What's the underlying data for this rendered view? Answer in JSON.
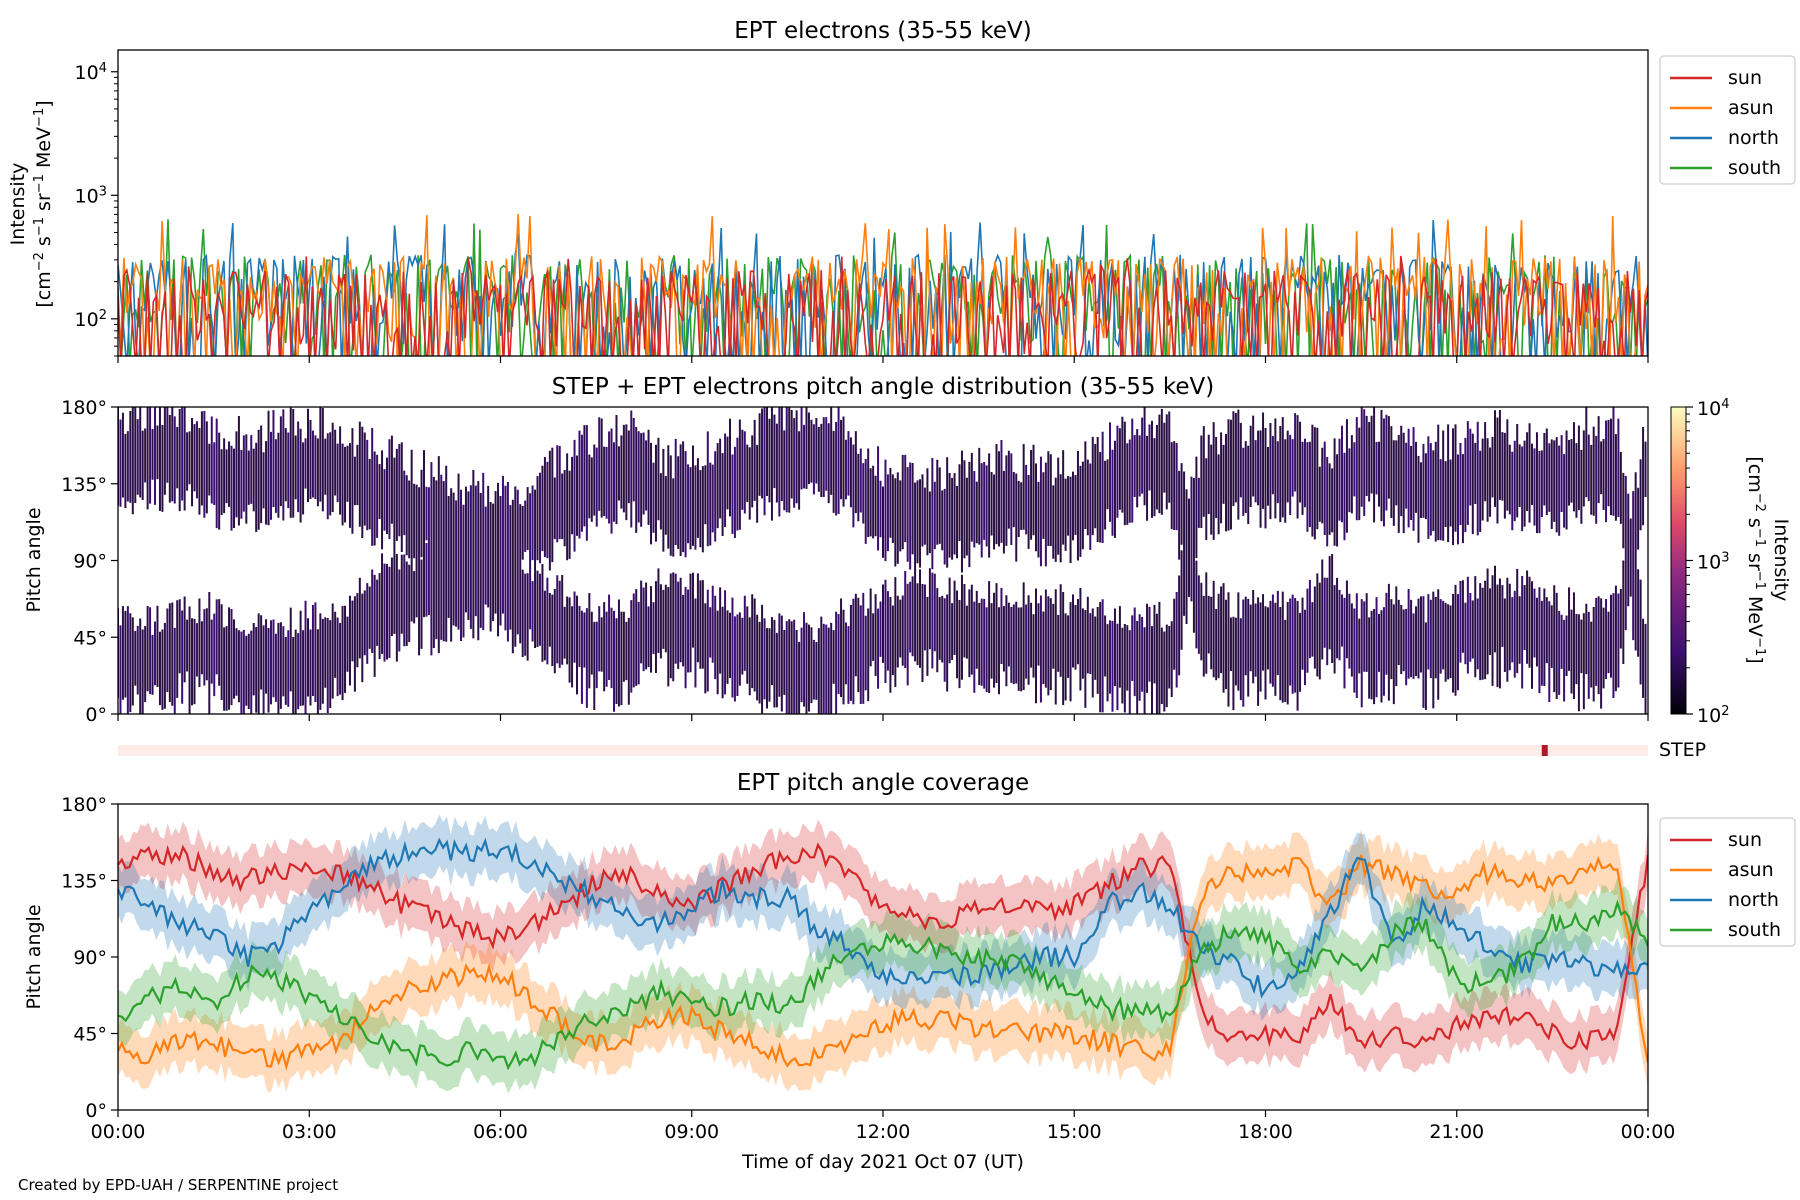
{
  "footer": {
    "credit": "Created by EPD-UAH / SERPENTINE project"
  },
  "colors": {
    "sun": "#d62728",
    "asun": "#ff7f0e",
    "north": "#1f77b4",
    "south": "#2ca02c",
    "step_bar": "#fdece8",
    "step_mark": "#b2182b",
    "pad_fill": "#2a0f45",
    "pad_low": "#000004"
  },
  "chart_data": [
    {
      "id": "ept-intensity",
      "type": "line",
      "title": "EPT electrons (35-55 keV)",
      "xlabel": "",
      "ylabel": "Intensity",
      "ylabel_units": "[cm$^{-2}$ s$^{-1}$ sr$^{-1}$ MeV$^{-1}$]",
      "ylabel_units_text": [
        "[cm",
        "−2",
        " s",
        "−1",
        " sr",
        "−1",
        " MeV",
        "−1",
        "]"
      ],
      "yscale": "log",
      "ylim": [
        50,
        15000
      ],
      "xlim": [
        "00:00",
        "24:00"
      ],
      "ytick_labels": [
        {
          "value": 100,
          "base": "10",
          "exp": "2"
        },
        {
          "value": 1000,
          "base": "10",
          "exp": "3"
        },
        {
          "value": 10000,
          "base": "10",
          "exp": "4"
        }
      ],
      "legend": {
        "placement": "outside-right-top",
        "entries": [
          "sun",
          "asun",
          "north",
          "south"
        ]
      },
      "series": [
        {
          "name": "sun",
          "typical_range": [
            50,
            250
          ],
          "peak_max": 330
        },
        {
          "name": "asun",
          "typical_range": [
            60,
            320
          ],
          "peak_max": 710
        },
        {
          "name": "north",
          "typical_range": [
            60,
            330
          ],
          "peak_max": 640
        },
        {
          "name": "south",
          "typical_range": [
            60,
            330
          ],
          "peak_max": 640
        }
      ]
    },
    {
      "id": "pitch-angle-distribution",
      "type": "heatmap",
      "title": "STEP + EPT electrons pitch angle distribution (35-55 keV)",
      "xlabel": "",
      "ylabel": "Pitch angle",
      "ylim": [
        0,
        180
      ],
      "yticks": [
        "0°",
        "45°",
        "90°",
        "135°",
        "180°"
      ],
      "colorbar": {
        "label": "Intensity",
        "units_text": [
          "[cm",
          "−2",
          " s",
          "−1",
          " sr",
          "−1",
          " MeV",
          "−1",
          "]"
        ],
        "scale": "log",
        "range": [
          100,
          10000
        ],
        "tick_labels": [
          {
            "value": 100,
            "base": "10",
            "exp": "2"
          },
          {
            "value": 1000,
            "base": "10",
            "exp": "3"
          },
          {
            "value": 10000,
            "base": "10",
            "exp": "4"
          }
        ]
      },
      "typical_intensity": 150
    },
    {
      "id": "step-coverage",
      "type": "bar",
      "label": "STEP",
      "mark_time": "22:20"
    },
    {
      "id": "ept-pitch-coverage",
      "type": "line",
      "title": "EPT pitch angle coverage",
      "xlabel": "Time of day 2021 Oct 07 (UT)",
      "ylabel": "Pitch angle",
      "ylim": [
        0,
        180
      ],
      "yticks": [
        "0°",
        "45°",
        "90°",
        "135°",
        "180°"
      ],
      "xticks": [
        "00:00",
        "03:00",
        "06:00",
        "09:00",
        "12:00",
        "15:00",
        "18:00",
        "21:00",
        "00:00"
      ],
      "xlim_hours": [
        0,
        24
      ],
      "legend": {
        "placement": "outside-right-top",
        "entries": [
          "sun",
          "asun",
          "north",
          "south"
        ]
      },
      "series": [
        {
          "name": "sun",
          "band_halfwidth": 15,
          "x": [
            0,
            0.5,
            1,
            1.5,
            2,
            2.5,
            3,
            3.5,
            4,
            4.5,
            5,
            5.5,
            6,
            6.5,
            7,
            7.5,
            8,
            8.5,
            9,
            9.5,
            10,
            10.5,
            11,
            11.5,
            12,
            12.5,
            13,
            13.5,
            14,
            14.5,
            15,
            15.5,
            16,
            16.5,
            17,
            17.5,
            18,
            18.5,
            19,
            19.5,
            20,
            20.5,
            21,
            21.5,
            22,
            22.5,
            23,
            23.5,
            24
          ],
          "y": [
            145,
            150,
            150,
            140,
            135,
            140,
            145,
            140,
            130,
            120,
            112,
            105,
            100,
            110,
            120,
            135,
            140,
            125,
            120,
            132,
            140,
            150,
            150,
            140,
            118,
            112,
            112,
            118,
            122,
            118,
            120,
            132,
            142,
            145,
            55,
            42,
            45,
            40,
            65,
            40,
            45,
            40,
            50,
            55,
            55,
            45,
            40,
            45,
            150
          ]
        },
        {
          "name": "asun",
          "band_halfwidth": 15,
          "x": [
            0,
            0.5,
            1,
            1.5,
            2,
            2.5,
            3,
            3.5,
            4,
            4.5,
            5,
            5.5,
            6,
            6.5,
            7,
            7.5,
            8,
            8.5,
            9,
            9.5,
            10,
            10.5,
            11,
            11.5,
            12,
            12.5,
            13,
            13.5,
            14,
            14.5,
            15,
            15.5,
            16,
            16.5,
            17,
            17.5,
            18,
            18.5,
            19,
            19.5,
            20,
            20.5,
            21,
            21.5,
            22,
            22.5,
            23,
            23.5,
            24
          ],
          "y": [
            35,
            32,
            40,
            40,
            30,
            30,
            35,
            40,
            60,
            70,
            75,
            80,
            80,
            65,
            50,
            40,
            42,
            55,
            55,
            45,
            40,
            30,
            30,
            40,
            50,
            55,
            52,
            48,
            48,
            45,
            45,
            40,
            35,
            35,
            130,
            140,
            140,
            145,
            120,
            145,
            140,
            130,
            130,
            140,
            135,
            135,
            140,
            145,
            25
          ]
        },
        {
          "name": "north",
          "band_halfwidth": 15,
          "x": [
            0,
            0.5,
            1,
            1.5,
            2,
            2.5,
            3,
            3.5,
            4,
            4.5,
            5,
            5.5,
            6,
            6.5,
            7,
            7.5,
            8,
            8.5,
            9,
            9.5,
            10,
            10.5,
            11,
            11.5,
            12,
            12.5,
            13,
            13.5,
            14,
            14.5,
            15,
            15.5,
            16,
            16.5,
            17,
            17.5,
            18,
            18.5,
            19,
            19.5,
            20,
            20.5,
            21,
            21.5,
            22,
            22.5,
            23,
            23.5,
            24
          ],
          "y": [
            130,
            120,
            110,
            105,
            90,
            95,
            120,
            130,
            145,
            150,
            155,
            150,
            155,
            145,
            135,
            125,
            115,
            110,
            120,
            130,
            125,
            125,
            105,
            95,
            80,
            75,
            78,
            80,
            85,
            90,
            90,
            120,
            130,
            120,
            95,
            85,
            70,
            85,
            115,
            150,
            95,
            120,
            110,
            95,
            85,
            90,
            85,
            85,
            80
          ]
        },
        {
          "name": "south",
          "band_halfwidth": 15,
          "x": [
            0,
            0.5,
            1,
            1.5,
            2,
            2.5,
            3,
            3.5,
            4,
            4.5,
            5,
            5.5,
            6,
            6.5,
            7,
            7.5,
            8,
            8.5,
            9,
            9.5,
            10,
            10.5,
            11,
            11.5,
            12,
            12.5,
            13,
            13.5,
            14,
            14.5,
            15,
            15.5,
            16,
            16.5,
            17,
            17.5,
            18,
            18.5,
            19,
            19.5,
            20,
            20.5,
            21,
            21.5,
            22,
            22.5,
            23,
            23.5,
            24
          ],
          "y": [
            55,
            65,
            75,
            60,
            80,
            78,
            65,
            55,
            45,
            35,
            30,
            35,
            30,
            30,
            45,
            55,
            60,
            70,
            62,
            60,
            65,
            60,
            80,
            95,
            100,
            98,
            95,
            88,
            88,
            75,
            72,
            60,
            58,
            58,
            95,
            105,
            100,
            85,
            90,
            80,
            105,
            110,
            75,
            75,
            85,
            110,
            110,
            120,
            100
          ]
        }
      ]
    }
  ]
}
